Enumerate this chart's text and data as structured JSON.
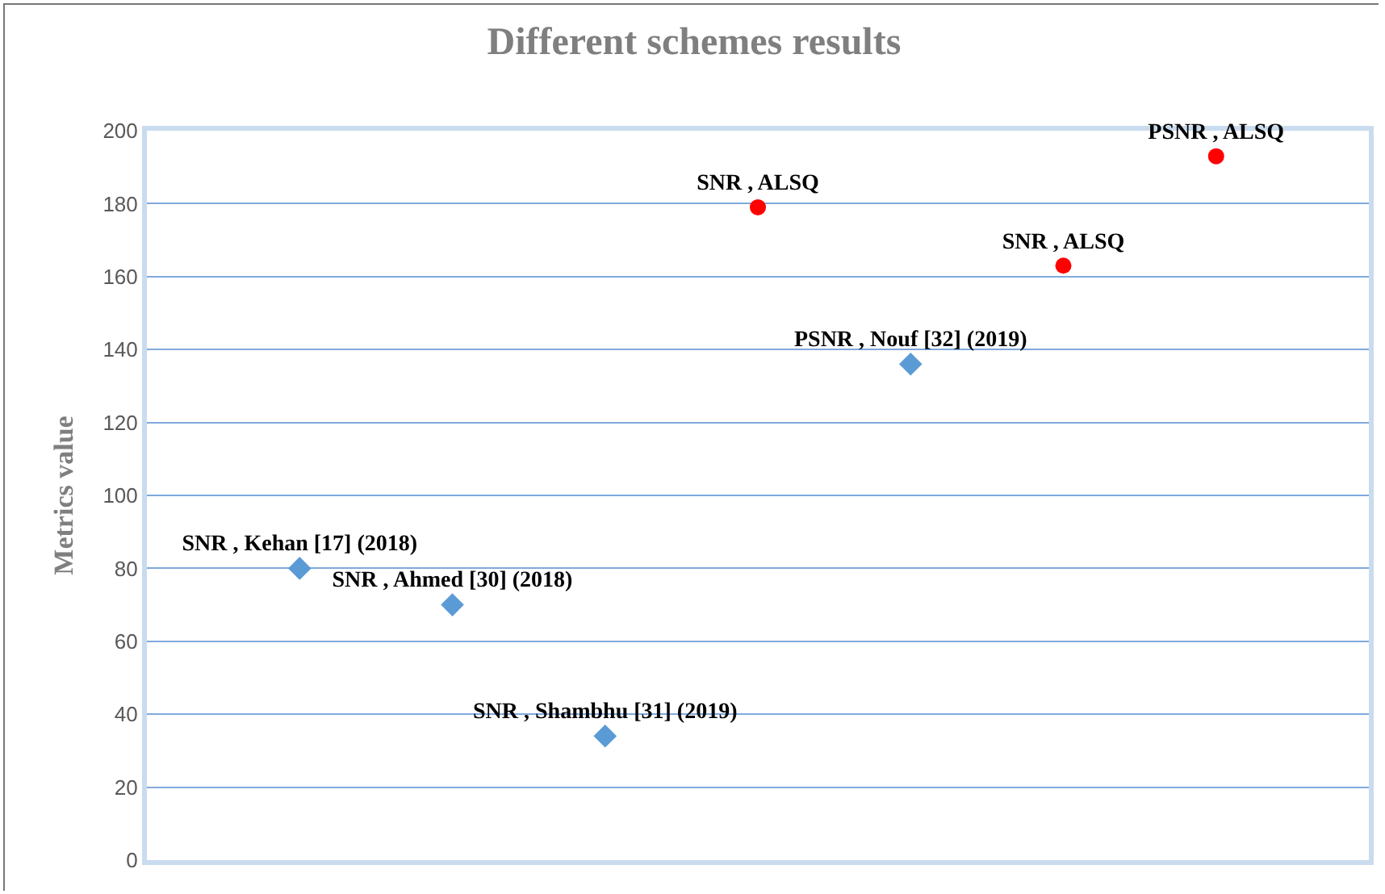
{
  "chart_data": {
    "type": "scatter",
    "title": "Different schemes results",
    "ylabel": "Metrics value",
    "categories": [
      null,
      null,
      null,
      null,
      null,
      null,
      null
    ],
    "series": [
      {
        "color": "#5b9bd5",
        "marker": "diamond",
        "values": [
          80,
          70,
          34,
          null,
          136,
          null,
          null
        ],
        "value_labels": [
          "SNR , Kehan [17] (2018)",
          "SNR , Ahmed [30] (2018)",
          "SNR , Shambhu [31] (2019)",
          null,
          "PSNR , Nouf [32] (2019)",
          null,
          null
        ]
      },
      {
        "color": "#ff0000",
        "marker": "circle",
        "values": [
          null,
          null,
          null,
          179,
          null,
          163,
          193
        ],
        "value_labels": [
          null,
          null,
          null,
          "SNR , ALSQ",
          null,
          "SNR , ALSQ",
          "PSNR , ALSQ"
        ]
      }
    ],
    "ylim": [
      0,
      200
    ],
    "yticks": [
      0,
      20,
      40,
      60,
      80,
      100,
      120,
      140,
      160,
      180,
      200
    ],
    "grid": "y",
    "tick_labels": "y"
  }
}
